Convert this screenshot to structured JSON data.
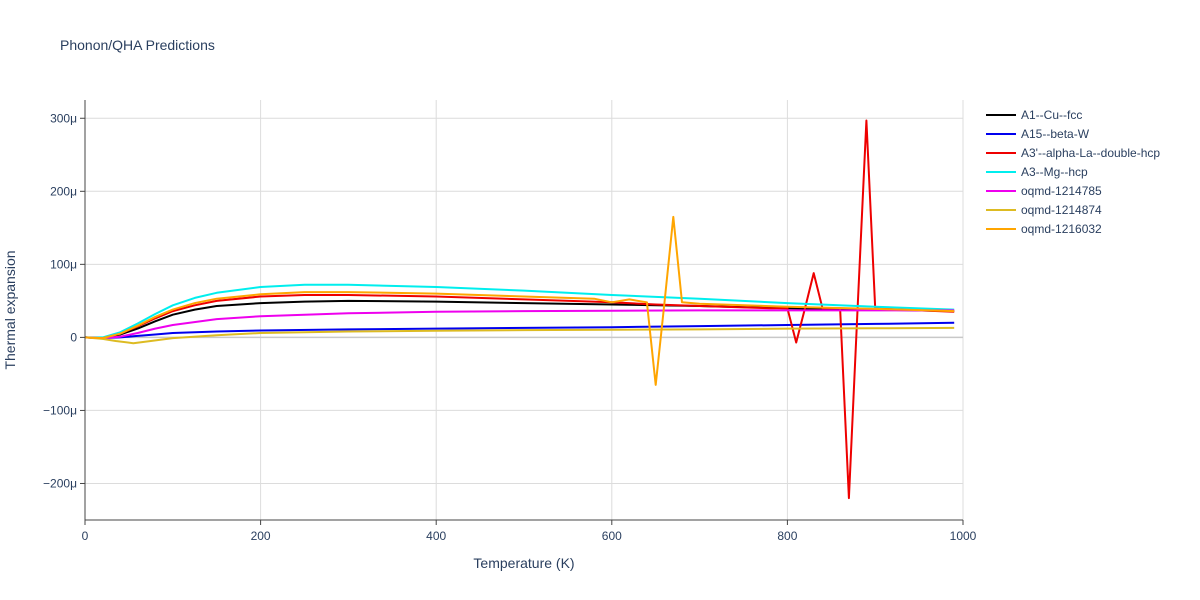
{
  "chart_data": {
    "type": "line",
    "title": "Phonon/QHA Predictions",
    "xlabel": "Temperature (K)",
    "ylabel": "Thermal expansion",
    "xlim": [
      0,
      1000
    ],
    "ylim": [
      -250,
      325
    ],
    "x_ticks": [
      0,
      200,
      400,
      600,
      800,
      1000
    ],
    "x_tick_labels": [
      "0",
      "200",
      "400",
      "600",
      "800",
      "1000"
    ],
    "y_ticks": [
      -200,
      -100,
      0,
      100,
      200,
      300
    ],
    "y_tick_labels": [
      "−200μ",
      "−100μ",
      "0",
      "100μ",
      "200μ",
      "300μ"
    ],
    "grid": true,
    "legend_position": "right",
    "series": [
      {
        "name": "A1--Cu--fcc",
        "color": "#000000",
        "points": [
          [
            0,
            0
          ],
          [
            20,
            -1
          ],
          [
            40,
            4
          ],
          [
            60,
            12
          ],
          [
            80,
            22
          ],
          [
            100,
            31
          ],
          [
            125,
            38
          ],
          [
            150,
            43
          ],
          [
            200,
            47
          ],
          [
            250,
            49
          ],
          [
            300,
            50
          ],
          [
            400,
            49
          ],
          [
            500,
            47
          ],
          [
            600,
            45
          ],
          [
            700,
            43
          ],
          [
            800,
            40
          ],
          [
            900,
            38
          ],
          [
            990,
            36
          ]
        ]
      },
      {
        "name": "A15--beta-W",
        "color": "#0000ee",
        "points": [
          [
            0,
            0
          ],
          [
            20,
            -1
          ],
          [
            40,
            0
          ],
          [
            60,
            2
          ],
          [
            80,
            4
          ],
          [
            100,
            6
          ],
          [
            150,
            8
          ],
          [
            200,
            9.5
          ],
          [
            300,
            11
          ],
          [
            400,
            12
          ],
          [
            500,
            13
          ],
          [
            600,
            14
          ],
          [
            700,
            15.5
          ],
          [
            800,
            17
          ],
          [
            900,
            18.5
          ],
          [
            990,
            20
          ]
        ]
      },
      {
        "name": "A3'--alpha-La--double-hcp",
        "color": "#ee0000",
        "points": [
          [
            0,
            0
          ],
          [
            20,
            -1
          ],
          [
            40,
            5
          ],
          [
            60,
            15
          ],
          [
            80,
            26
          ],
          [
            100,
            36
          ],
          [
            125,
            44
          ],
          [
            150,
            50
          ],
          [
            200,
            56
          ],
          [
            250,
            58
          ],
          [
            300,
            58
          ],
          [
            400,
            56
          ],
          [
            500,
            52
          ],
          [
            600,
            48
          ],
          [
            650,
            45
          ],
          [
            700,
            43
          ],
          [
            780,
            40
          ],
          [
            800,
            40
          ],
          [
            810,
            -7
          ],
          [
            820,
            40
          ],
          [
            830,
            88
          ],
          [
            840,
            40
          ],
          [
            860,
            40
          ],
          [
            870,
            -220
          ],
          [
            880,
            40
          ],
          [
            890,
            297
          ],
          [
            900,
            40
          ],
          [
            950,
            37
          ],
          [
            990,
            35
          ]
        ]
      },
      {
        "name": "A3--Mg--hcp",
        "color": "#00eeee",
        "points": [
          [
            0,
            0
          ],
          [
            20,
            0
          ],
          [
            40,
            7
          ],
          [
            60,
            19
          ],
          [
            80,
            32
          ],
          [
            100,
            44
          ],
          [
            125,
            54
          ],
          [
            150,
            61
          ],
          [
            200,
            69
          ],
          [
            250,
            72
          ],
          [
            300,
            72
          ],
          [
            400,
            69
          ],
          [
            500,
            64
          ],
          [
            600,
            58
          ],
          [
            700,
            53
          ],
          [
            800,
            47
          ],
          [
            900,
            42
          ],
          [
            990,
            38
          ]
        ]
      },
      {
        "name": "oqmd-1214785",
        "color": "#ee00ee",
        "points": [
          [
            0,
            0
          ],
          [
            20,
            -1
          ],
          [
            40,
            1
          ],
          [
            60,
            6
          ],
          [
            80,
            12
          ],
          [
            100,
            17
          ],
          [
            150,
            25
          ],
          [
            200,
            29
          ],
          [
            300,
            33
          ],
          [
            400,
            35
          ],
          [
            500,
            36
          ],
          [
            600,
            36.5
          ],
          [
            700,
            37
          ],
          [
            800,
            37
          ],
          [
            900,
            37
          ],
          [
            990,
            37
          ]
        ]
      },
      {
        "name": "oqmd-1214874",
        "color": "#ddbb22",
        "points": [
          [
            0,
            0
          ],
          [
            20,
            -2
          ],
          [
            35,
            -5
          ],
          [
            55,
            -8
          ],
          [
            75,
            -5
          ],
          [
            100,
            -1
          ],
          [
            150,
            3
          ],
          [
            200,
            6
          ],
          [
            300,
            8
          ],
          [
            400,
            9
          ],
          [
            500,
            10
          ],
          [
            600,
            10.5
          ],
          [
            700,
            11
          ],
          [
            800,
            12
          ],
          [
            900,
            12.5
          ],
          [
            990,
            13
          ]
        ]
      },
      {
        "name": "oqmd-1216032",
        "color": "#ffa500",
        "points": [
          [
            0,
            0
          ],
          [
            20,
            -1
          ],
          [
            40,
            5
          ],
          [
            60,
            16
          ],
          [
            80,
            28
          ],
          [
            100,
            38
          ],
          [
            125,
            47
          ],
          [
            150,
            53
          ],
          [
            200,
            59
          ],
          [
            250,
            62
          ],
          [
            300,
            62
          ],
          [
            400,
            60
          ],
          [
            500,
            56
          ],
          [
            580,
            53
          ],
          [
            600,
            48
          ],
          [
            620,
            52
          ],
          [
            640,
            48
          ],
          [
            650,
            -65
          ],
          [
            660,
            48
          ],
          [
            670,
            165
          ],
          [
            680,
            48
          ],
          [
            700,
            46
          ],
          [
            800,
            42
          ],
          [
            900,
            39
          ],
          [
            990,
            36
          ]
        ]
      }
    ]
  }
}
